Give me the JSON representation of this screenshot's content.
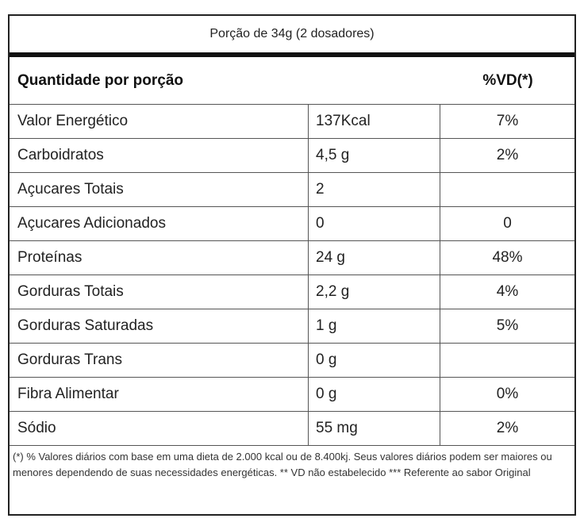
{
  "portion": "Porção de 34g (2 dosadores)",
  "header": {
    "quantity_label": "Quantidade por porção",
    "vd_label": "%VD(*)"
  },
  "rows": [
    {
      "name": "Valor Energético",
      "amount": "137Kcal",
      "vd": "7%"
    },
    {
      "name": "Carboidratos",
      "amount": "4,5 g",
      "vd": "2%"
    },
    {
      "name": "Açucares Totais",
      "amount": "2",
      "vd": ""
    },
    {
      "name": "Açucares Adicionados",
      "amount": "0",
      "vd": "0"
    },
    {
      "name": "Proteínas",
      "amount": "24 g",
      "vd": "48%"
    },
    {
      "name": "Gorduras Totais",
      "amount": "2,2 g",
      "vd": "4%"
    },
    {
      "name": "Gorduras Saturadas",
      "amount": "1 g",
      "vd": "5%"
    },
    {
      "name": "Gorduras Trans",
      "amount": "0 g",
      "vd": ""
    },
    {
      "name": "Fibra Alimentar",
      "amount": "0 g",
      "vd": "0%"
    },
    {
      "name": "Sódio",
      "amount": "55 mg",
      "vd": "2%"
    }
  ],
  "footnote": "(*) % Valores diários com base em uma dieta de 2.000 kcal ou de 8.400kj. Seus valores diários podem ser maiores ou menores dependendo de suas necessidades energéticas. ** VD não estabelecido *** Referente ao sabor Original"
}
